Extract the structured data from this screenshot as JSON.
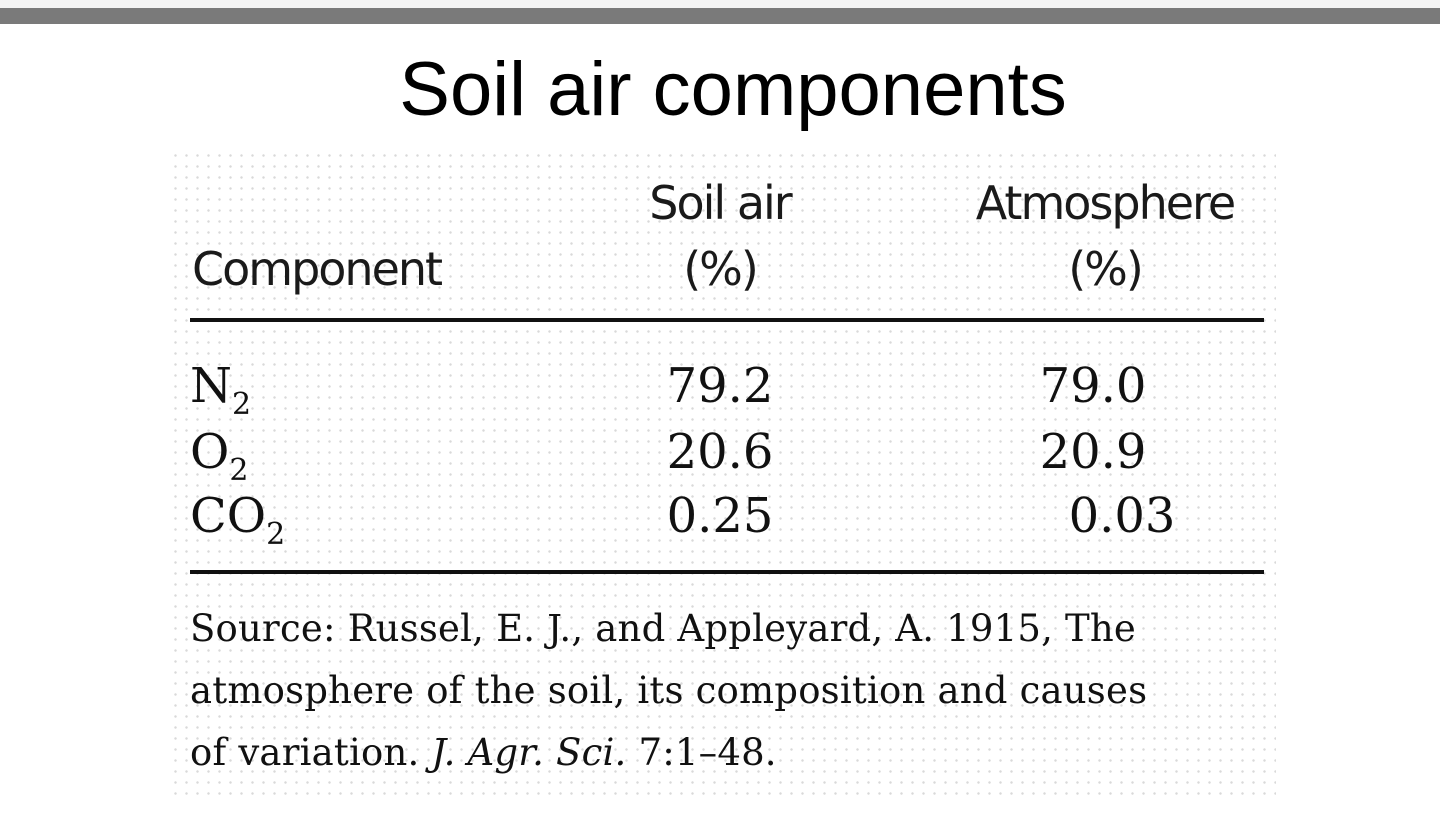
{
  "title": "Soil air components",
  "table": {
    "headers": {
      "component": "Component",
      "soil_air": [
        "Soil air",
        "(%)"
      ],
      "atmosphere": [
        "Atmosphere",
        "(%)"
      ]
    },
    "rows": [
      {
        "base": "N",
        "sub": "2",
        "soil_air": "79.2",
        "atmosphere": "79.0"
      },
      {
        "base": "O",
        "sub": "2",
        "soil_air": "20.6",
        "atmosphere": "20.9"
      },
      {
        "base": "CO",
        "sub": "2",
        "soil_air": "0.25",
        "atmosphere": "0.03"
      }
    ]
  },
  "source": {
    "line1": "Source: Russel, E. J., and Appleyard, A. 1915, The",
    "line2": "atmosphere of the soil, its composition and causes",
    "line3_prefix": "of variation. ",
    "line3_journal": "J. Agr. Sci.",
    "line3_suffix": " 7:1–48."
  }
}
